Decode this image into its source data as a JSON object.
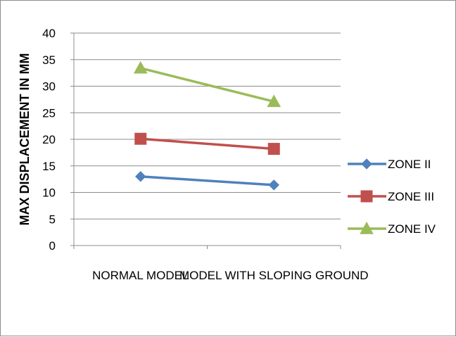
{
  "chart_data": {
    "type": "line",
    "title": "",
    "xlabel": "",
    "ylabel": "MAX DISPLACEMENT IN MM",
    "categories": [
      "NORMAL MODEL",
      "MODEL WITH SLOPING GROUND"
    ],
    "ylim": [
      0,
      40
    ],
    "yticks": [
      "0",
      "5",
      "10",
      "15",
      "20",
      "25",
      "30",
      "35",
      "40"
    ],
    "grid": true,
    "legend_position": "right",
    "series": [
      {
        "name": "ZONE II",
        "values": [
          13,
          11.4
        ],
        "color": "#4F81BD",
        "marker": "diamond"
      },
      {
        "name": "ZONE III",
        "values": [
          20.1,
          18.2
        ],
        "color": "#C0504D",
        "marker": "square"
      },
      {
        "name": "ZONE IV",
        "values": [
          33.4,
          27.1
        ],
        "color": "#9BBB59",
        "marker": "triangle"
      }
    ]
  }
}
